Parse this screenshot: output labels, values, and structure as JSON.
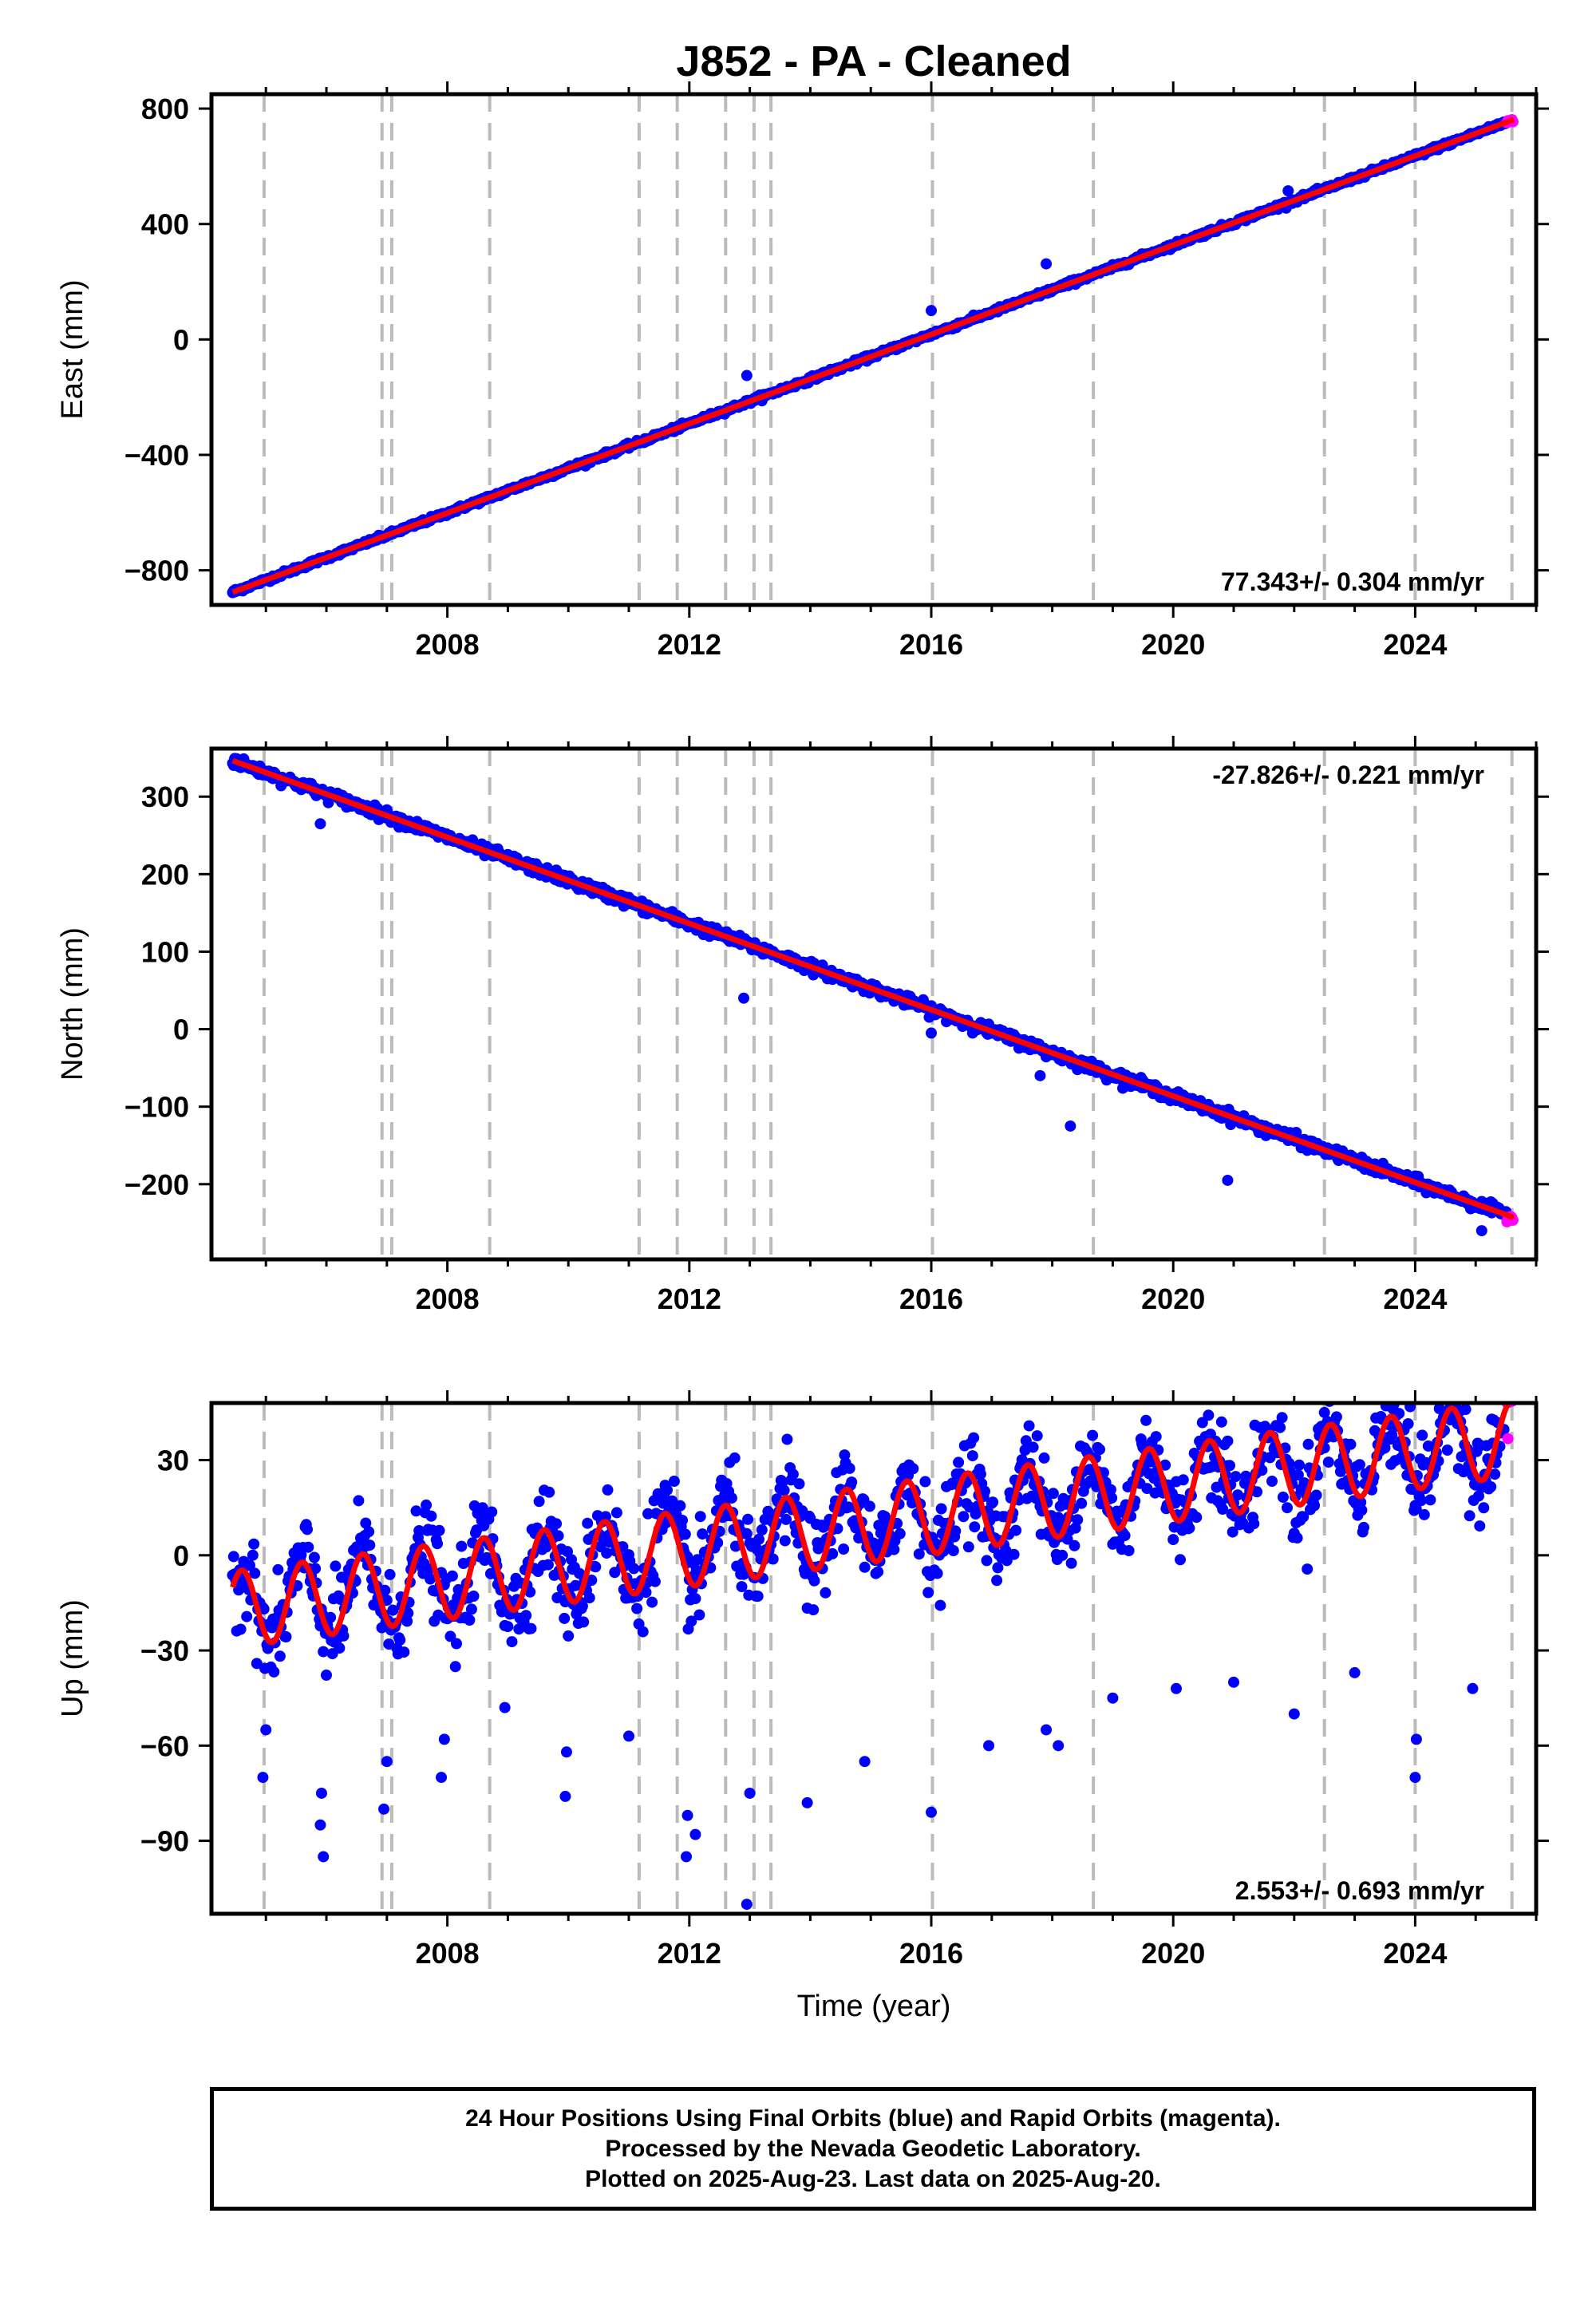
{
  "title": "J852  - PA - Cleaned",
  "footer": {
    "line1": "24 Hour Positions Using Final Orbits (blue) and Rapid Orbits (magenta).",
    "line2": "Processed by the Nevada Geodetic Laboratory.",
    "line3": "Plotted on 2025-Aug-23. Last data on 2025-Aug-20."
  },
  "colors": {
    "final_orbits": "#0000ff",
    "rapid_orbits": "#ff00ff",
    "model_fit": "#ff0000",
    "equipment_lines": "#bbbbbb"
  },
  "chart_data": [
    {
      "type": "scatter",
      "panel": "east",
      "ylabel": "East (mm)",
      "xlabel": "",
      "xlim": [
        2004.1,
        2026.0
      ],
      "ylim": [
        -920,
        850
      ],
      "xticks": [
        2008,
        2012,
        2016,
        2020,
        2024
      ],
      "yticks": [
        -800,
        -400,
        0,
        400,
        800
      ],
      "rate_text": "77.343+/- 0.304 mm/yr",
      "fit": {
        "rate": 77.343,
        "t0": 2004.5,
        "y0": -872,
        "annual_amp": 0,
        "annual_phase": 0
      },
      "noise": 4,
      "start_x": 2004.45,
      "end_x": 2025.63,
      "rapid_start": 2025.5,
      "outliers": [
        {
          "x": 2012.95,
          "y": -125
        },
        {
          "x": 2016.0,
          "y": 100
        },
        {
          "x": 2021.9,
          "y": 515
        },
        {
          "x": 2017.9,
          "y": 262
        }
      ]
    },
    {
      "type": "scatter",
      "panel": "north",
      "ylabel": "North (mm)",
      "xlabel": "",
      "xlim": [
        2004.1,
        2026.0
      ],
      "ylim": [
        -297,
        362
      ],
      "xticks": [
        2008,
        2012,
        2016,
        2020,
        2024
      ],
      "yticks": [
        -200,
        -100,
        0,
        100,
        200,
        300
      ],
      "rate_text": "-27.826+/- 0.221 mm/yr",
      "fit": {
        "rate": -27.826,
        "t0": 2004.5,
        "y0": 345,
        "annual_amp": 0,
        "annual_phase": 0
      },
      "noise": 3.5,
      "start_x": 2004.45,
      "end_x": 2025.63,
      "rapid_start": 2025.5,
      "outliers": [
        {
          "x": 2005.9,
          "y": 265
        },
        {
          "x": 2011.0,
          "y": 170
        },
        {
          "x": 2012.9,
          "y": 40
        },
        {
          "x": 2016.0,
          "y": -5
        },
        {
          "x": 2017.8,
          "y": -60
        },
        {
          "x": 2018.3,
          "y": -125
        },
        {
          "x": 2020.9,
          "y": -195
        },
        {
          "x": 2025.1,
          "y": -260
        }
      ]
    },
    {
      "type": "scatter",
      "panel": "up",
      "ylabel": "Up (mm)",
      "xlabel": "Time (year)",
      "xlim": [
        2004.1,
        2026.0
      ],
      "ylim": [
        -113,
        48
      ],
      "xticks": [
        2008,
        2012,
        2016,
        2020,
        2024
      ],
      "yticks": [
        -90,
        -60,
        -30,
        0,
        30
      ],
      "rate_text": "2.553+/- 0.693 mm/yr",
      "fit": {
        "rate": 2.553,
        "t0": 2004.5,
        "y0": -17,
        "annual_amp": 12,
        "annual_phase": 0.1
      },
      "noise": 7,
      "start_x": 2004.45,
      "end_x": 2025.63,
      "rapid_start": 2025.5,
      "outliers": [
        {
          "x": 2004.95,
          "y": -70
        },
        {
          "x": 2005.0,
          "y": -55
        },
        {
          "x": 2005.95,
          "y": -95
        },
        {
          "x": 2005.9,
          "y": -85
        },
        {
          "x": 2005.92,
          "y": -75
        },
        {
          "x": 2006.95,
          "y": -80
        },
        {
          "x": 2007.0,
          "y": -65
        },
        {
          "x": 2007.9,
          "y": -70
        },
        {
          "x": 2007.95,
          "y": -58
        },
        {
          "x": 2008.95,
          "y": -48
        },
        {
          "x": 2009.95,
          "y": -76
        },
        {
          "x": 2009.97,
          "y": -62
        },
        {
          "x": 2011.0,
          "y": -57
        },
        {
          "x": 2011.95,
          "y": -95
        },
        {
          "x": 2011.97,
          "y": -82
        },
        {
          "x": 2012.1,
          "y": -88
        },
        {
          "x": 2012.95,
          "y": -110
        },
        {
          "x": 2013.0,
          "y": -75
        },
        {
          "x": 2013.95,
          "y": -78
        },
        {
          "x": 2014.9,
          "y": -65
        },
        {
          "x": 2016.0,
          "y": -81
        },
        {
          "x": 2016.95,
          "y": -60
        },
        {
          "x": 2017.9,
          "y": -55
        },
        {
          "x": 2018.1,
          "y": -60
        },
        {
          "x": 2019.0,
          "y": -45
        },
        {
          "x": 2020.05,
          "y": -42
        },
        {
          "x": 2021.0,
          "y": -40
        },
        {
          "x": 2022.0,
          "y": -50
        },
        {
          "x": 2023.0,
          "y": -37
        },
        {
          "x": 2024.0,
          "y": -70
        },
        {
          "x": 2024.02,
          "y": -58
        },
        {
          "x": 2024.95,
          "y": -42
        },
        {
          "x": 2022.5,
          "y": 45
        },
        {
          "x": 2020.9,
          "y": 36
        }
      ]
    }
  ],
  "equipment_changes": [
    2004.97,
    2006.92,
    2007.08,
    2008.7,
    2011.17,
    2011.8,
    2012.6,
    2013.07,
    2013.35,
    2016.02,
    2018.68,
    2022.5,
    2024.0,
    2025.6
  ]
}
